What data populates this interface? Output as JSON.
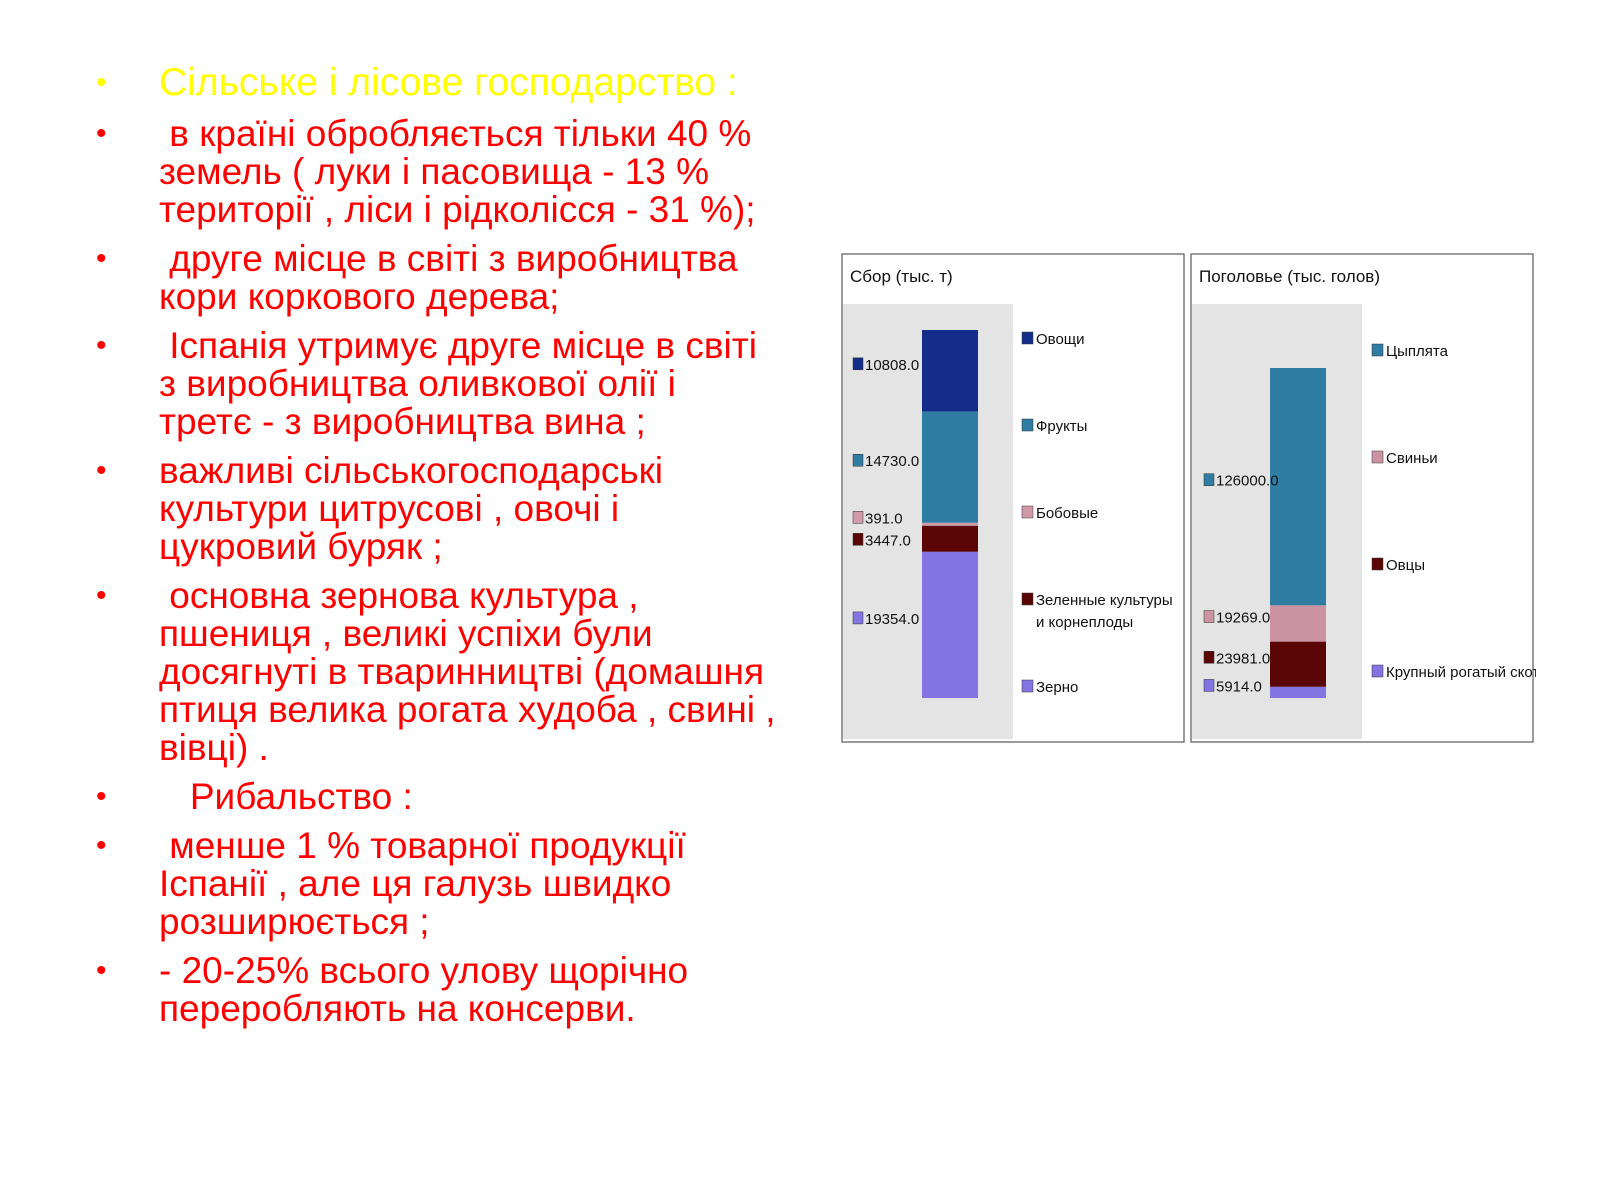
{
  "slide": {
    "bullets": [
      "Сільське і лісове господарство :",
      " в країні обробляється тільки 40 % земель ( луки і пасовища - 13 % території , ліси і рідколісся - 31 %);",
      " друге місце в світі з виробництва кори коркового дерева;",
      " Іспанія утримує друге місце в світі з виробництва оливкової олії і третє - з виробництва вина ;",
      "важливі сільськогосподарські культури цитрусові , овочі і цукровий буряк ;",
      " основна зернова культура , пшениця , великі успіхи були досягнуті в тваринництві (домашня птиця велика рогата худоба , свині , вівці) .",
      "   Рибальство :",
      " менше 1 % товарної продукції Іспанії , але ця галузь швидко розширюється ;",
      "- 20-25% всього улову щорічно переробляють на консерви."
    ],
    "bullet_symbol": "•",
    "colors": {
      "text": "#ff0000",
      "heading": "#ffff00",
      "background": "#ffffff"
    }
  },
  "chart_data": [
    {
      "type": "bar",
      "stacked": true,
      "title": "Сбор (тыс. т)",
      "series": [
        {
          "name": "Овощи",
          "values": [
            10808.0
          ],
          "color": "#142c8a",
          "label": "10808.0"
        },
        {
          "name": "Фрукты",
          "values": [
            14730.0
          ],
          "color": "#2f7da3",
          "label": "14730.0"
        },
        {
          "name": "Бобовые",
          "values": [
            391.0
          ],
          "color": "#d299a8",
          "label": "391.0"
        },
        {
          "name": "Зеленные культуры и корнеплоды",
          "values": [
            3447.0
          ],
          "color": "#5a0606",
          "label": "3447.0"
        },
        {
          "name": "Зерно",
          "values": [
            19354.0
          ],
          "color": "#8474e2",
          "label": "19354.0"
        }
      ],
      "legend_position": "right",
      "grid": false
    },
    {
      "type": "bar",
      "stacked": true,
      "title": "Поголовье (тыс. голов)",
      "series": [
        {
          "name": "Цыплята",
          "values": [
            126000.0
          ],
          "color": "#2f7da3",
          "label": "126000.0"
        },
        {
          "name": "Свиньи",
          "values": [
            19269.0
          ],
          "color": "#cc94a2",
          "label": "19269.0"
        },
        {
          "name": "Овцы",
          "values": [
            23981.0
          ],
          "color": "#5a0606",
          "label": "23981.0"
        },
        {
          "name": "Крупный рогатый скот",
          "values": [
            5914.0
          ],
          "color": "#8474e2",
          "label": "5914.0"
        }
      ],
      "legend_position": "right",
      "grid": false
    }
  ]
}
